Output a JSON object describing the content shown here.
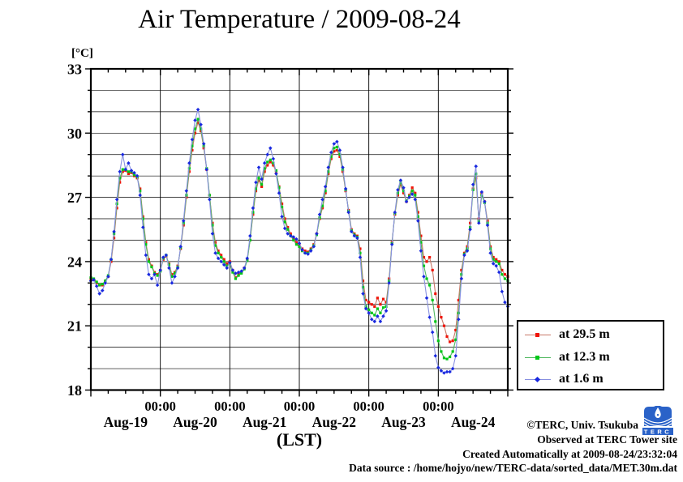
{
  "title": "Air Temperature / 2009-08-24",
  "y_unit": "[°C]",
  "x_axis_label": "(LST)",
  "footer": {
    "copyright": "©TERC, Univ. Tsukuba",
    "observed": "Observed at TERC Tower site",
    "created": "Created Automatically at 2009-08-24/23:32:04",
    "source": "Data source : /home/hojyo/new/TERC-data/sorted_data/MET.30m.dat"
  },
  "logo_text": "TERC",
  "chart_data": {
    "type": "line",
    "title": "Air Temperature / 2009-08-24",
    "xlabel": "(LST)",
    "ylabel": "[°C]",
    "ylim": [
      18,
      33
    ],
    "y_grid_step": 1,
    "y_tick_labels": [
      "33",
      "30",
      "27",
      "24",
      "21",
      "18"
    ],
    "y_tick_values": [
      33,
      30,
      27,
      24,
      21,
      18
    ],
    "x_range_hours": [
      0,
      144
    ],
    "x_start": "2009-08-19 00:00 LST",
    "x_sample_step_hours": 1,
    "x_midnight_hours": [
      24,
      48,
      72,
      96,
      120
    ],
    "x_time_labels": [
      "00:00",
      "00:00",
      "00:00",
      "00:00",
      "00:00"
    ],
    "day_label_hours": [
      12,
      36,
      60,
      84,
      108,
      132
    ],
    "day_labels": [
      "Aug-19",
      "Aug-20",
      "Aug-21",
      "Aug-22",
      "Aug-23",
      "Aug-24"
    ],
    "grid_on": true,
    "legend_position": "outside-right-bottom",
    "series": [
      {
        "name": "at 29.5 m",
        "marker_color": "#f01408",
        "line_color": "#c87868",
        "marker": "square",
        "values": [
          23.2,
          23.15,
          23.0,
          22.9,
          22.9,
          23.1,
          23.3,
          24.0,
          25.1,
          26.5,
          27.7,
          28.2,
          28.25,
          28.1,
          28.15,
          28.0,
          27.9,
          27.4,
          26.1,
          24.9,
          24.1,
          23.8,
          23.5,
          23.4,
          23.6,
          24.1,
          24.25,
          23.9,
          23.4,
          23.5,
          23.8,
          24.6,
          25.7,
          27.0,
          28.2,
          29.2,
          30.0,
          30.5,
          30.1,
          29.3,
          28.3,
          27.1,
          25.8,
          24.9,
          24.5,
          24.3,
          24.1,
          23.9,
          24.0,
          23.6,
          23.25,
          23.4,
          23.5,
          23.7,
          24.1,
          25.0,
          26.2,
          27.3,
          27.8,
          27.5,
          28.2,
          28.5,
          28.65,
          28.5,
          28.2,
          27.5,
          26.7,
          26.0,
          25.6,
          25.3,
          25.1,
          24.9,
          24.8,
          24.6,
          24.5,
          24.45,
          24.6,
          24.8,
          25.3,
          26.0,
          26.5,
          27.2,
          28.1,
          28.8,
          29.15,
          29.2,
          28.9,
          28.2,
          27.3,
          26.4,
          25.5,
          25.3,
          25.2,
          24.6,
          23.1,
          22.2,
          22.1,
          22.0,
          21.9,
          22.3,
          22.0,
          22.25,
          22.1,
          23.2,
          24.9,
          26.2,
          27.1,
          27.6,
          27.2,
          26.8,
          27.1,
          27.45,
          27.2,
          26.3,
          25.2,
          24.2,
          24.0,
          24.2,
          23.6,
          22.5,
          21.9,
          21.4,
          21.0,
          20.5,
          20.25,
          20.3,
          20.8,
          22.2,
          23.6,
          24.4,
          24.7,
          25.8,
          27.4,
          27.9,
          26.0,
          27.2,
          26.8,
          25.9,
          24.7,
          24.2,
          24.1,
          24.0,
          23.6,
          23.4,
          23.3
        ]
      },
      {
        "name": "at 12.3 m",
        "marker_color": "#00c818",
        "line_color": "#50b860",
        "marker": "square",
        "values": [
          23.25,
          23.2,
          23.05,
          22.9,
          22.95,
          23.1,
          23.35,
          24.1,
          25.3,
          26.7,
          27.9,
          28.3,
          28.3,
          28.2,
          28.2,
          28.05,
          27.95,
          27.3,
          26.0,
          24.8,
          24.0,
          23.75,
          23.45,
          23.35,
          23.55,
          24.15,
          24.3,
          23.85,
          23.3,
          23.45,
          23.75,
          24.65,
          25.8,
          27.1,
          28.35,
          29.4,
          30.2,
          30.65,
          30.2,
          29.4,
          28.35,
          27.1,
          25.7,
          24.75,
          24.4,
          24.2,
          24.0,
          23.8,
          23.9,
          23.5,
          23.2,
          23.35,
          23.45,
          23.65,
          24.05,
          25.0,
          26.3,
          27.4,
          27.9,
          27.6,
          28.35,
          28.65,
          28.75,
          28.6,
          28.25,
          27.45,
          26.55,
          25.85,
          25.5,
          25.2,
          25.0,
          24.8,
          24.7,
          24.5,
          24.4,
          24.4,
          24.55,
          24.75,
          25.25,
          26.05,
          26.6,
          27.3,
          28.2,
          28.9,
          29.3,
          29.35,
          29.0,
          28.3,
          27.35,
          26.35,
          25.45,
          25.25,
          25.15,
          24.4,
          22.8,
          21.9,
          21.75,
          21.6,
          21.5,
          21.8,
          21.6,
          21.85,
          21.9,
          23.1,
          24.85,
          26.25,
          27.2,
          27.7,
          27.3,
          26.85,
          27.05,
          27.3,
          27.1,
          26.1,
          24.9,
          23.8,
          23.2,
          22.9,
          22.2,
          21.2,
          20.3,
          19.8,
          19.5,
          19.45,
          19.55,
          19.8,
          20.35,
          21.6,
          23.4,
          24.35,
          24.6,
          25.6,
          27.35,
          28.1,
          25.9,
          27.1,
          26.75,
          25.8,
          24.6,
          24.1,
          24.0,
          23.9,
          23.4,
          23.2,
          23.1
        ]
      },
      {
        "name": "at 1.6 m",
        "marker_color": "#1828e0",
        "line_color": "#8890e0",
        "marker": "diamond",
        "values": [
          23.1,
          23.15,
          22.85,
          22.5,
          22.65,
          23.0,
          23.3,
          24.1,
          25.4,
          26.9,
          28.2,
          29.0,
          28.3,
          28.6,
          28.25,
          28.15,
          28.0,
          27.1,
          25.6,
          24.3,
          23.4,
          23.2,
          23.4,
          22.9,
          23.6,
          24.2,
          24.3,
          23.7,
          23.0,
          23.3,
          23.7,
          24.7,
          25.9,
          27.3,
          28.6,
          29.7,
          30.6,
          31.1,
          30.4,
          29.5,
          28.3,
          26.9,
          25.3,
          24.4,
          24.15,
          24.0,
          23.85,
          23.7,
          23.95,
          23.6,
          23.45,
          23.5,
          23.55,
          23.7,
          24.15,
          25.2,
          26.5,
          27.7,
          28.4,
          27.85,
          28.6,
          29.0,
          29.3,
          28.8,
          28.1,
          27.2,
          26.1,
          25.55,
          25.3,
          25.2,
          25.15,
          25.05,
          24.85,
          24.55,
          24.4,
          24.35,
          24.5,
          24.7,
          25.3,
          26.2,
          26.9,
          27.5,
          28.4,
          29.1,
          29.5,
          29.6,
          29.2,
          28.4,
          27.4,
          26.3,
          25.4,
          25.2,
          25.1,
          24.2,
          22.5,
          21.8,
          21.6,
          21.3,
          21.2,
          21.45,
          21.2,
          21.45,
          21.7,
          23.0,
          24.8,
          26.3,
          27.35,
          27.8,
          27.45,
          26.8,
          27.0,
          27.15,
          26.9,
          25.9,
          24.5,
          23.3,
          22.3,
          21.4,
          20.7,
          19.6,
          19.05,
          18.9,
          18.8,
          18.85,
          18.85,
          19.0,
          19.6,
          21.3,
          23.2,
          24.3,
          24.5,
          25.5,
          27.6,
          28.45,
          25.8,
          27.25,
          26.8,
          25.7,
          24.4,
          23.9,
          23.8,
          23.5,
          22.6,
          22.1,
          21.9
        ]
      }
    ]
  }
}
